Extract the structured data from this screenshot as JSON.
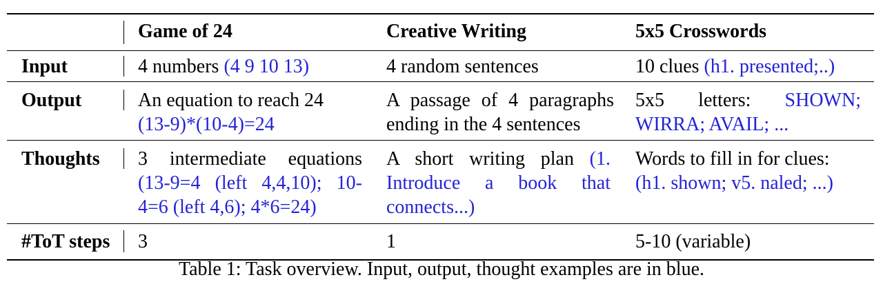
{
  "table": {
    "columns": [
      "Game of 24",
      "Creative Writing",
      "5x5 Crosswords"
    ],
    "rows": {
      "input": {
        "label": "Input",
        "game24": {
          "text": "4 numbers ",
          "example": "(4 9 10 13)"
        },
        "writing": {
          "text": "4 random sentences"
        },
        "crosswords": {
          "text": "10 clues ",
          "example": "(h1. presented;..)"
        }
      },
      "output": {
        "label": "Output",
        "game24": {
          "text": "An equation to reach 24",
          "example": "(13-9)*(10-4)=24"
        },
        "writing": {
          "text": "A passage of 4 paragraphs ending in the 4 sentences"
        },
        "crosswords": {
          "text": "5x5 letters: ",
          "example": "SHOWN; WIRRA; AVAIL; ..."
        }
      },
      "thoughts": {
        "label": "Thoughts",
        "game24": {
          "text": "3 intermediate equations",
          "example": "(13-9=4 (left 4,4,10); 10-4=6 (left 4,6); 4*6=24)"
        },
        "writing": {
          "text": "A short writing plan ",
          "example": "(1. Introduce a book that connects...)"
        },
        "crosswords": {
          "text": "Words to fill in for clues:",
          "example": "(h1. shown; v5. naled; ...)"
        }
      },
      "steps": {
        "label": "#ToT steps",
        "game24": "3",
        "writing": "1",
        "crosswords": "5-10 (variable)"
      }
    }
  },
  "caption": "Table 1: Task overview. Input, output, thought examples are in blue.",
  "colors": {
    "example_text": "#2323d6",
    "rule": "#000000"
  }
}
